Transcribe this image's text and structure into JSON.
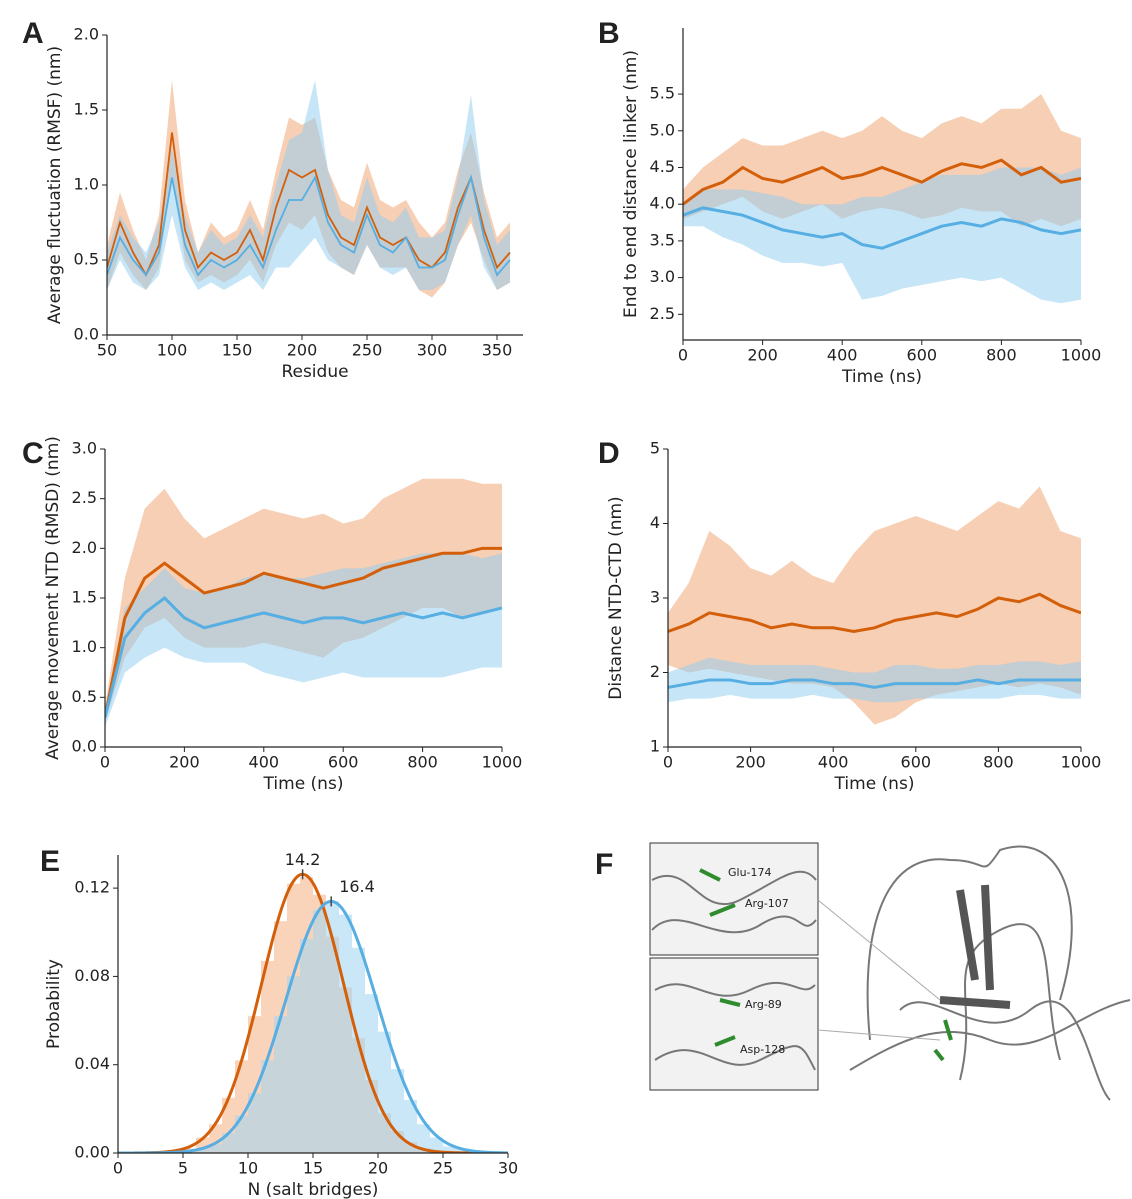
{
  "chart_data": [
    {
      "panel": "A",
      "type": "line",
      "xlabel": "Residue",
      "ylabel": "Average fluctuation (RMSF) (nm)",
      "xlim": [
        50,
        370
      ],
      "ylim": [
        0,
        2.0
      ],
      "xticks": [
        50,
        100,
        150,
        200,
        250,
        300,
        350
      ],
      "yticks": [
        {
          "value": 0,
          "label": "0.0"
        },
        0.5,
        {
          "value": 1,
          "label": "1.0"
        },
        1.5,
        {
          "value": 2,
          "label": "2.0"
        }
      ],
      "x": [
        50,
        60,
        70,
        80,
        90,
        100,
        110,
        120,
        130,
        140,
        150,
        160,
        170,
        180,
        190,
        200,
        210,
        220,
        230,
        240,
        250,
        260,
        270,
        280,
        290,
        300,
        310,
        320,
        330,
        340,
        350,
        360
      ],
      "series": [
        {
          "color": "#d35f0b",
          "band_color": "#f0a06a",
          "values": [
            0.45,
            0.75,
            0.55,
            0.4,
            0.6,
            1.35,
            0.7,
            0.45,
            0.55,
            0.5,
            0.55,
            0.7,
            0.5,
            0.85,
            1.1,
            1.05,
            1.1,
            0.8,
            0.65,
            0.6,
            0.85,
            0.65,
            0.6,
            0.65,
            0.5,
            0.45,
            0.55,
            0.85,
            1.05,
            0.7,
            0.45,
            0.55
          ],
          "lower": [
            0.3,
            0.55,
            0.4,
            0.3,
            0.45,
            1.05,
            0.5,
            0.35,
            0.4,
            0.35,
            0.4,
            0.5,
            0.35,
            0.6,
            0.75,
            0.7,
            0.8,
            0.55,
            0.45,
            0.4,
            0.6,
            0.45,
            0.45,
            0.45,
            0.3,
            0.25,
            0.35,
            0.6,
            0.75,
            0.5,
            0.3,
            0.35
          ],
          "upper": [
            0.6,
            0.95,
            0.7,
            0.5,
            0.8,
            1.7,
            0.9,
            0.55,
            0.75,
            0.65,
            0.7,
            0.9,
            0.7,
            1.1,
            1.45,
            1.4,
            1.45,
            1.1,
            0.9,
            0.85,
            1.15,
            0.9,
            0.85,
            0.9,
            0.75,
            0.65,
            0.75,
            1.1,
            1.35,
            0.95,
            0.65,
            0.75
          ]
        },
        {
          "color": "#56aee2",
          "band_color": "#8ecdf2",
          "values": [
            0.4,
            0.65,
            0.5,
            0.4,
            0.55,
            1.05,
            0.6,
            0.4,
            0.5,
            0.45,
            0.5,
            0.6,
            0.45,
            0.7,
            0.9,
            0.9,
            1.05,
            0.75,
            0.6,
            0.55,
            0.8,
            0.6,
            0.55,
            0.65,
            0.45,
            0.45,
            0.5,
            0.8,
            1.05,
            0.65,
            0.4,
            0.5
          ],
          "lower": [
            0.3,
            0.5,
            0.35,
            0.3,
            0.4,
            0.8,
            0.45,
            0.3,
            0.35,
            0.3,
            0.35,
            0.4,
            0.3,
            0.45,
            0.45,
            0.55,
            0.65,
            0.5,
            0.45,
            0.4,
            0.6,
            0.45,
            0.4,
            0.45,
            0.3,
            0.3,
            0.35,
            0.6,
            0.8,
            0.45,
            0.3,
            0.35
          ],
          "upper": [
            0.55,
            0.8,
            0.65,
            0.55,
            0.75,
            1.25,
            0.8,
            0.55,
            0.7,
            0.6,
            0.65,
            0.8,
            0.65,
            1.0,
            1.3,
            1.35,
            1.7,
            1.1,
            0.8,
            0.75,
            1.05,
            0.8,
            0.75,
            0.85,
            0.65,
            0.65,
            0.7,
            1.05,
            1.6,
            0.9,
            0.6,
            0.7
          ]
        }
      ]
    },
    {
      "panel": "B",
      "type": "line",
      "xlabel": "Time (ns)",
      "ylabel": "End to end distance linker (nm)",
      "xlim": [
        0,
        1000
      ],
      "ylim": [
        2.15,
        6.4
      ],
      "xticks": [
        0,
        200,
        400,
        600,
        800,
        1000
      ],
      "yticks": [
        2.5,
        {
          "value": 3,
          "label": "3.0"
        },
        3.5,
        {
          "value": 4,
          "label": "4.0"
        },
        4.5,
        {
          "value": 5,
          "label": "5.0"
        },
        5.5
      ],
      "x": [
        0,
        50,
        100,
        150,
        200,
        250,
        300,
        350,
        400,
        450,
        500,
        550,
        600,
        650,
        700,
        750,
        800,
        850,
        900,
        950,
        1000
      ],
      "series": [
        {
          "color": "#d35f0b",
          "band_color": "#f0a06a",
          "values": [
            4.0,
            4.2,
            4.3,
            4.5,
            4.35,
            4.3,
            4.4,
            4.5,
            4.35,
            4.4,
            4.5,
            4.4,
            4.3,
            4.45,
            4.55,
            4.5,
            4.6,
            4.4,
            4.5,
            4.3,
            4.35
          ],
          "lower": [
            3.8,
            3.9,
            4.0,
            4.1,
            3.9,
            3.8,
            3.9,
            4.0,
            3.8,
            3.9,
            3.95,
            3.9,
            3.8,
            3.85,
            3.95,
            3.9,
            3.9,
            3.7,
            3.8,
            3.7,
            3.8
          ],
          "upper": [
            4.2,
            4.5,
            4.7,
            4.9,
            4.8,
            4.8,
            4.9,
            5.0,
            4.9,
            5.0,
            5.2,
            5.0,
            4.9,
            5.1,
            5.2,
            5.1,
            5.3,
            5.3,
            5.5,
            5.0,
            4.9
          ]
        },
        {
          "color": "#56aee2",
          "band_color": "#8ecdf2",
          "values": [
            3.85,
            3.95,
            3.9,
            3.85,
            3.75,
            3.65,
            3.6,
            3.55,
            3.6,
            3.45,
            3.4,
            3.5,
            3.6,
            3.7,
            3.75,
            3.7,
            3.8,
            3.75,
            3.65,
            3.6,
            3.65
          ],
          "lower": [
            3.7,
            3.7,
            3.55,
            3.45,
            3.3,
            3.2,
            3.2,
            3.15,
            3.2,
            2.7,
            2.75,
            2.85,
            2.9,
            2.95,
            3.0,
            2.95,
            3.0,
            2.85,
            2.7,
            2.65,
            2.7
          ],
          "upper": [
            4.0,
            4.2,
            4.2,
            4.2,
            4.15,
            4.1,
            4.0,
            4.0,
            4.0,
            4.1,
            4.1,
            4.2,
            4.3,
            4.4,
            4.4,
            4.4,
            4.5,
            4.5,
            4.5,
            4.4,
            4.5
          ]
        }
      ]
    },
    {
      "panel": "C",
      "type": "line",
      "xlabel": "Time (ns)",
      "ylabel": "Average movement NTD (RMSD) (nm)",
      "xlim": [
        0,
        1000
      ],
      "ylim": [
        0,
        3.0
      ],
      "xticks": [
        0,
        200,
        400,
        600,
        800,
        1000
      ],
      "yticks": [
        {
          "value": 0,
          "label": "0.0"
        },
        0.5,
        {
          "value": 1,
          "label": "1.0"
        },
        1.5,
        {
          "value": 2,
          "label": "2.0"
        },
        2.5,
        {
          "value": 3,
          "label": "3.0"
        }
      ],
      "x": [
        0,
        50,
        100,
        150,
        200,
        250,
        300,
        350,
        400,
        450,
        500,
        550,
        600,
        650,
        700,
        750,
        800,
        850,
        900,
        950,
        1000
      ],
      "series": [
        {
          "color": "#d35f0b",
          "band_color": "#f0a06a",
          "values": [
            0.3,
            1.3,
            1.7,
            1.85,
            1.7,
            1.55,
            1.6,
            1.65,
            1.75,
            1.7,
            1.65,
            1.6,
            1.65,
            1.7,
            1.8,
            1.85,
            1.9,
            1.95,
            1.95,
            2.0,
            2.0
          ],
          "lower": [
            0.25,
            0.9,
            1.2,
            1.3,
            1.1,
            1.0,
            1.0,
            1.0,
            1.05,
            1.0,
            0.95,
            0.9,
            1.05,
            1.1,
            1.2,
            1.3,
            1.4,
            1.4,
            1.3,
            1.35,
            1.4
          ],
          "upper": [
            0.4,
            1.7,
            2.4,
            2.6,
            2.3,
            2.1,
            2.2,
            2.3,
            2.4,
            2.35,
            2.3,
            2.35,
            2.25,
            2.3,
            2.5,
            2.6,
            2.7,
            2.7,
            2.7,
            2.65,
            2.65
          ]
        },
        {
          "color": "#56aee2",
          "band_color": "#8ecdf2",
          "values": [
            0.3,
            1.1,
            1.35,
            1.5,
            1.3,
            1.2,
            1.25,
            1.3,
            1.35,
            1.3,
            1.25,
            1.3,
            1.3,
            1.25,
            1.3,
            1.35,
            1.3,
            1.35,
            1.3,
            1.35,
            1.4
          ],
          "lower": [
            0.2,
            0.75,
            0.9,
            1.0,
            0.9,
            0.85,
            0.85,
            0.85,
            0.75,
            0.7,
            0.65,
            0.7,
            0.75,
            0.7,
            0.7,
            0.7,
            0.7,
            0.7,
            0.75,
            0.8,
            0.8
          ],
          "upper": [
            0.35,
            1.4,
            1.6,
            1.8,
            1.6,
            1.55,
            1.6,
            1.7,
            1.75,
            1.7,
            1.7,
            1.75,
            1.8,
            1.8,
            1.85,
            1.9,
            1.95,
            1.95,
            1.95,
            1.9,
            1.95
          ]
        }
      ]
    },
    {
      "panel": "D",
      "type": "line",
      "xlabel": "Time (ns)",
      "ylabel": "Distance NTD-CTD (nm)",
      "xlim": [
        0,
        1000
      ],
      "ylim": [
        1,
        5
      ],
      "xticks": [
        0,
        200,
        400,
        600,
        800,
        1000
      ],
      "yticks": [
        1,
        2,
        3,
        4,
        5
      ],
      "x": [
        0,
        50,
        100,
        150,
        200,
        250,
        300,
        350,
        400,
        450,
        500,
        550,
        600,
        650,
        700,
        750,
        800,
        850,
        900,
        950,
        1000
      ],
      "series": [
        {
          "color": "#d35f0b",
          "band_color": "#f0a06a",
          "values": [
            2.55,
            2.65,
            2.8,
            2.75,
            2.7,
            2.6,
            2.65,
            2.6,
            2.6,
            2.55,
            2.6,
            2.7,
            2.75,
            2.8,
            2.75,
            2.85,
            3.0,
            2.95,
            3.05,
            2.9,
            2.8
          ],
          "lower": [
            2.1,
            2.0,
            2.05,
            2.0,
            1.95,
            1.9,
            1.85,
            1.85,
            1.8,
            1.6,
            1.3,
            1.4,
            1.6,
            1.7,
            1.75,
            1.8,
            1.85,
            1.8,
            1.85,
            1.8,
            1.7
          ],
          "upper": [
            2.8,
            3.2,
            3.9,
            3.7,
            3.4,
            3.3,
            3.5,
            3.3,
            3.2,
            3.6,
            3.9,
            4.0,
            4.1,
            4.0,
            3.9,
            4.1,
            4.3,
            4.2,
            4.5,
            3.9,
            3.8
          ]
        },
        {
          "color": "#56aee2",
          "band_color": "#8ecdf2",
          "values": [
            1.8,
            1.85,
            1.9,
            1.9,
            1.85,
            1.85,
            1.9,
            1.9,
            1.85,
            1.85,
            1.8,
            1.85,
            1.85,
            1.85,
            1.85,
            1.9,
            1.85,
            1.9,
            1.9,
            1.9,
            1.9
          ],
          "lower": [
            1.6,
            1.65,
            1.65,
            1.7,
            1.65,
            1.65,
            1.65,
            1.7,
            1.65,
            1.65,
            1.6,
            1.6,
            1.65,
            1.65,
            1.65,
            1.65,
            1.65,
            1.7,
            1.7,
            1.65,
            1.65
          ],
          "upper": [
            2.0,
            2.1,
            2.2,
            2.15,
            2.1,
            2.1,
            2.1,
            2.1,
            2.05,
            2.0,
            2.0,
            2.1,
            2.1,
            2.05,
            2.05,
            2.1,
            2.1,
            2.15,
            2.15,
            2.1,
            2.15
          ]
        }
      ]
    },
    {
      "panel": "E",
      "type": "histogram",
      "xlabel": "N (salt bridges)",
      "ylabel": "Probability",
      "xlim": [
        0,
        30
      ],
      "ylim": [
        0,
        0.135
      ],
      "xticks": [
        0,
        5,
        10,
        15,
        20,
        25,
        30
      ],
      "yticks": [
        {
          "value": 0,
          "label": "0.00"
        },
        {
          "value": 0.04,
          "label": "0.04"
        },
        {
          "value": 0.08,
          "label": "0.08"
        },
        {
          "value": 0.12,
          "label": "0.12"
        }
      ],
      "bins": [
        5,
        6,
        7,
        8,
        9,
        10,
        11,
        12,
        13,
        14,
        15,
        16,
        17,
        18,
        19,
        20,
        21,
        22,
        23,
        24,
        25,
        26,
        27,
        28
      ],
      "series": [
        {
          "color": "#d35f0b",
          "bar_color": "#f4b183",
          "values": [
            0.002,
            0.007,
            0.013,
            0.025,
            0.042,
            0.062,
            0.087,
            0.105,
            0.122,
            0.125,
            0.117,
            0.098,
            0.075,
            0.052,
            0.033,
            0.018,
            0.01,
            0.005,
            0.002,
            0.001,
            0,
            0,
            0
          ],
          "fit": {
            "mean": 14.2,
            "sd": 3.16
          }
        },
        {
          "color": "#56aee2",
          "bar_color": "#9fd3f3",
          "values": [
            0.001,
            0.002,
            0.004,
            0.009,
            0.017,
            0.027,
            0.042,
            0.062,
            0.08,
            0.097,
            0.11,
            0.114,
            0.108,
            0.093,
            0.072,
            0.055,
            0.038,
            0.024,
            0.013,
            0.007,
            0.003,
            0.002,
            0.001
          ],
          "fit": {
            "mean": 16.4,
            "sd": 3.5
          }
        }
      ]
    }
  ],
  "panel_f": {
    "label": "F",
    "residues": [
      "Glu-174",
      "Arg-107",
      "Arg-89",
      "Asp-128"
    ]
  }
}
